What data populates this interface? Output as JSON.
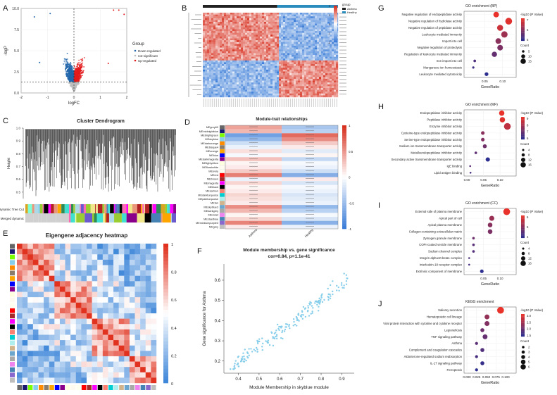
{
  "figure": {
    "panel_labels": [
      "A",
      "B",
      "C",
      "D",
      "E",
      "F",
      "G",
      "H",
      "I",
      "J"
    ],
    "colors": {
      "down": "#2166ac",
      "up": "#e31a1c",
      "ns": "#bdbdbd",
      "heat_hi": "#d7301f",
      "heat_lo": "#3b7dd8",
      "heat_mid": "#ffffff"
    }
  },
  "chart_data": [
    {
      "panel": "A",
      "type": "scatter",
      "title": "",
      "xlabel": "logFC",
      "ylabel": "-logP",
      "xlim": [
        -2,
        2
      ],
      "ylim": [
        0,
        10
      ],
      "xticks": [
        "-2",
        "-1",
        "0",
        "1",
        "2"
      ],
      "yticks": [
        "0.0",
        "2.5",
        "5.0",
        "7.5",
        "10.0"
      ],
      "legend_title": "Group",
      "legend": [
        "Down-regulated",
        "not-significant",
        "Up-regulated"
      ],
      "thresholds": {
        "logFC": 0,
        "neglogP": 1.3
      }
    },
    {
      "panel": "B",
      "type": "heatmap",
      "title": "",
      "legend_title": "group",
      "legend": [
        "Asthma",
        "Healthy"
      ],
      "scale_ticks": [
        "2",
        "1",
        "0",
        "-1",
        "-2"
      ]
    },
    {
      "panel": "C",
      "type": "dendrogram",
      "title": "Cluster Dendrogram",
      "ylabel": "Height",
      "yticks": [
        "0.5",
        "0.6",
        "0.7",
        "0.8",
        "0.9",
        "1.0"
      ],
      "row_labels": [
        "Dynamic Tree Cut",
        "Merged dynamic"
      ]
    },
    {
      "panel": "D",
      "type": "heatmap",
      "title": "Module-trait relationships",
      "columns": [
        "Asthma",
        "Healthy"
      ],
      "rows": [
        "MEgrey60",
        "MEmidnightblue",
        "MEbrightgreen",
        "MEskyblue",
        "MEdarkorange",
        "MEbisque4",
        "MEorange",
        "MEblue",
        "MEdarkmagenta",
        "MElightyellow",
        "MEfloralwhite",
        "MEivory",
        "MEred",
        "MEbrown",
        "MEmagenta",
        "MEblack",
        "MEsalmon",
        "MEdarkturquoise",
        "MEpaleturquoise",
        "MEtan",
        "MEskyblue3",
        "MEdarkgrey",
        "MEviolet",
        "MEsteelblue",
        "MEmediumpurple3",
        "MEgrey"
      ],
      "row_colors": [
        "#666666",
        "#191970",
        "#7cfc00",
        "#87ceeb",
        "#ff8c00",
        "#8b7d6b",
        "#ffa500",
        "#0000ff",
        "#8b008b",
        "#ffffe0",
        "#fffaf0",
        "#fffff0",
        "#ff0000",
        "#a52a2a",
        "#ff00ff",
        "#000000",
        "#fa8072",
        "#00ced1",
        "#afeeee",
        "#d2b48c",
        "#6ca6cd",
        "#a9a9a9",
        "#ee82ee",
        "#4682b4",
        "#8968cd",
        "#bebebe"
      ],
      "values": [
        0.45,
        0.35,
        -0.72,
        -0.55,
        -0.25,
        -0.1,
        0.15,
        -0.05,
        0.3,
        0.05,
        0.1,
        0.25,
        0.62,
        -0.1,
        0.2,
        0.05,
        0.1,
        0.2,
        0.15,
        0.1,
        0.55,
        0.35,
        0.05,
        0.2,
        0.6,
        0.1
      ],
      "scale_ticks": [
        "1",
        "0.5",
        "0",
        "-0.5",
        "-1"
      ]
    },
    {
      "panel": "E",
      "type": "heatmap",
      "title": "Eigengene adjacency heatmap",
      "scale_ticks": [
        "1",
        "0.8",
        "0.6",
        "0.4",
        "0.2",
        "0"
      ]
    },
    {
      "panel": "F",
      "type": "scatter",
      "title": "Module membership vs. gene significance",
      "subtitle": "cor=0.84, p=1.1e-41",
      "xlabel": "Module Membership in skyblue module",
      "ylabel": "Gene significance for Asthma",
      "xlim": [
        0.33,
        0.96
      ],
      "ylim": [
        0.14,
        0.68
      ],
      "xticks": [
        "0.4",
        "0.5",
        "0.6",
        "0.7",
        "0.8",
        "0.9"
      ],
      "yticks": [
        "0.2",
        "0.3",
        "0.4",
        "0.5",
        "0.6"
      ]
    },
    {
      "panel": "G",
      "type": "scatter",
      "title": "GO enrichment (BP)",
      "xlabel": "GeneRatio",
      "xlim": [
        0,
        0.13
      ],
      "xticks": [
        "0.05",
        "0.10"
      ],
      "categories": [
        "Negative regulation of endopeptidase activity",
        "Negative regulation of hydrolase activity",
        "Negative regulation of peptidase activity",
        "Leukocyte mediated immunity",
        "Import into cell",
        "Negative regulation of proteolysis",
        "Regulation of leukocyte mediated immunity",
        "Iron import into cell",
        "Manganese ion homeostasis",
        "Leukocyte mediated cytotoxicity"
      ],
      "x": [
        0.082,
        0.117,
        0.093,
        0.105,
        0.088,
        0.093,
        0.077,
        0.022,
        0.018,
        0.055
      ],
      "size": [
        12,
        15,
        13,
        14,
        12,
        12,
        11,
        4,
        3,
        7
      ],
      "color": [
        8.2,
        8.0,
        7.6,
        6.6,
        6.2,
        5.9,
        5.4,
        4.9,
        4.6,
        4.2
      ],
      "size_legend": {
        "title": "Count",
        "values": [
          5,
          10,
          15
        ]
      },
      "color_legend": {
        "title": "-log10 (P Value)",
        "ticks": [
          "7",
          "6",
          "5"
        ]
      }
    },
    {
      "panel": "H",
      "type": "scatter",
      "title": "GO enrichment (MF)",
      "xlabel": "GeneRatio",
      "xlim": [
        0,
        0.14
      ],
      "xticks": [
        "0.00",
        "0.05",
        "0.10"
      ],
      "categories": [
        "Endopeptidase inhibitor activity",
        "Peptidase inhibitor activity",
        "Enzyme inhibitor activity",
        "Cysteine-type endopeptidase inhibitor activity",
        "Serine-type endopeptidase inhibitor activity",
        "Sodium ion transmembrane transporter activity",
        "Metalloendopeptidase inhibitor activity",
        "Secondary active transmembrane transporter activity",
        "IgE binding",
        "Lipid antigen binding"
      ],
      "x": [
        0.105,
        0.107,
        0.122,
        0.048,
        0.048,
        0.054,
        0.027,
        0.063,
        0.01,
        0.011
      ],
      "size": [
        12,
        12,
        16,
        7,
        7,
        8,
        4,
        9,
        2,
        2
      ],
      "color": [
        9.4,
        9.2,
        8.4,
        7.2,
        7.0,
        6.6,
        6.2,
        5.0,
        6.0,
        5.6
      ],
      "size_legend": {
        "title": "Count",
        "values": [
          4,
          8,
          12,
          16
        ]
      },
      "color_legend": {
        "title": "-log10 (P Value)",
        "ticks": [
          "9",
          "8",
          "7",
          "6"
        ]
      }
    },
    {
      "panel": "I",
      "type": "scatter",
      "title": "GO enrichment (CC)",
      "xlabel": "GeneRatio",
      "xlim": [
        0,
        0.14
      ],
      "xticks": [
        "0.05",
        "0.10"
      ],
      "categories": [
        "External side of plasma membrane",
        "Apical part of cell",
        "Apical plasma membrane",
        "Collagen-containing extracellular matrix",
        "Zymogen granule membrane",
        "COPI-coated vesicle membrane",
        "Sodium channel complex",
        "Integrin alpha10-beta1 complex",
        "Interleukin-18 receptor complex",
        "Extrinsic component of membrane"
      ],
      "x": [
        0.12,
        0.075,
        0.07,
        0.07,
        0.02,
        0.02,
        0.02,
        0.007,
        0.007,
        0.045
      ],
      "size": [
        16,
        11,
        10,
        10,
        4,
        4,
        4,
        2,
        2,
        7
      ],
      "color": [
        6.5,
        5.3,
        5.0,
        4.8,
        4.6,
        4.3,
        4.2,
        4.1,
        4.0,
        3.6
      ],
      "size_legend": {
        "title": "Count",
        "values": [
          4,
          8,
          12,
          16
        ]
      },
      "color_legend": {
        "title": "-log10 (P Value)",
        "ticks": [
          "6",
          "5",
          "4"
        ]
      }
    },
    {
      "panel": "J",
      "type": "scatter",
      "title": "KEGG enrichment",
      "xlabel": "GeneRatio",
      "xlim": [
        0,
        0.12
      ],
      "xticks": [
        "0.000",
        "0.025",
        "0.050",
        "0.075",
        "0.100"
      ],
      "categories": [
        "Salivary secretion",
        "Hematopoietic cell lineage",
        "Viral protein interaction with cytokine and cytokine receptor",
        "Legionellosis",
        "TNF signaling pathway",
        "Asthma",
        "Complement and coagulation cascades",
        "Aldosterone-regulated sodium reabsorption",
        "IL-17 signaling pathway",
        "Ferroptosis"
      ],
      "x": [
        0.087,
        0.052,
        0.052,
        0.04,
        0.047,
        0.025,
        0.04,
        0.025,
        0.04,
        0.025
      ],
      "size": [
        6,
        4,
        4,
        3,
        4,
        2,
        3,
        2,
        3,
        2
      ],
      "color": [
        3.4,
        2.5,
        2.3,
        2.1,
        2.0,
        1.9,
        1.8,
        1.7,
        1.5,
        1.4
      ],
      "size_legend": {
        "title": "Count",
        "values": [
          2,
          3,
          4,
          5,
          6
        ]
      },
      "color_legend": {
        "title": "-log10 (P Value)",
        "ticks": [
          "3.0",
          "2.5",
          "2.0",
          "1.5"
        ]
      }
    }
  ]
}
